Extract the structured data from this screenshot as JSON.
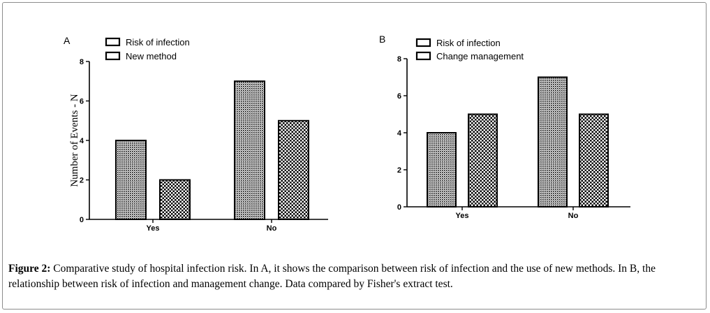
{
  "chart_data": [
    {
      "type": "bar",
      "panel": "A",
      "categories": [
        "Yes",
        "No"
      ],
      "series": [
        {
          "name": "Risk of infection",
          "values": [
            4,
            7
          ],
          "pattern": "dense"
        },
        {
          "name": "New method",
          "values": [
            2,
            5
          ],
          "pattern": "checker"
        }
      ],
      "ylabel": "Number of Events - N",
      "ylim": [
        0,
        8
      ],
      "yticks": [
        0,
        2,
        4,
        6,
        8
      ],
      "legend_position": "top-left"
    },
    {
      "type": "bar",
      "panel": "B",
      "categories": [
        "Yes",
        "No"
      ],
      "series": [
        {
          "name": "Risk of infection",
          "values": [
            4,
            7
          ],
          "pattern": "dense"
        },
        {
          "name": "Change management",
          "values": [
            5,
            5
          ],
          "pattern": "checker"
        }
      ],
      "ylabel": "",
      "ylim": [
        0,
        8
      ],
      "yticks": [
        0,
        2,
        4,
        6,
        8
      ],
      "legend_position": "top-left"
    }
  ],
  "caption": {
    "label": "Figure 2:",
    "text": " Comparative study of hospital infection risk. In A, it shows the comparison between risk of infection and the use of new methods. In B, the relationship between risk of infection and management change. Data compared by Fisher's extract test."
  }
}
